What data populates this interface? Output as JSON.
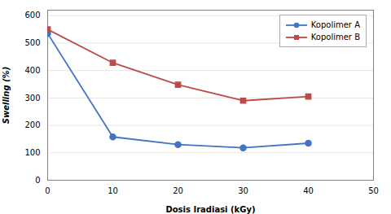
{
  "chart_data": {
    "type": "line",
    "x": [
      0,
      10,
      20,
      30,
      40
    ],
    "series": [
      {
        "name": "Kopolimer A",
        "color": "#4472C4",
        "marker": "circle",
        "values": [
          535,
          158,
          130,
          118,
          135
        ]
      },
      {
        "name": "Kopolimer B",
        "color": "#BE4B48",
        "marker": "square",
        "values": [
          550,
          428,
          348,
          290,
          305
        ]
      }
    ],
    "xlabel": "Dosis Iradiasi (kGy)",
    "ylabel": "Swelling (%)",
    "xlim": [
      0,
      50
    ],
    "ylim": [
      0,
      620
    ],
    "xticks": [
      0,
      10,
      20,
      30,
      40,
      50
    ],
    "yticks": [
      0,
      100,
      200,
      300,
      400,
      500,
      600
    ],
    "grid": true,
    "legend": "upper right"
  }
}
